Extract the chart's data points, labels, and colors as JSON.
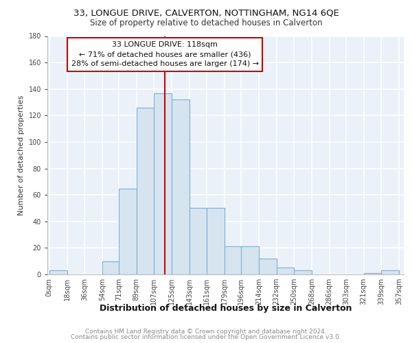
{
  "title_line1": "33, LONGUE DRIVE, CALVERTON, NOTTINGHAM, NG14 6QE",
  "title_line2": "Size of property relative to detached houses in Calverton",
  "xlabel": "Distribution of detached houses by size in Calverton",
  "ylabel": "Number of detached properties",
  "bar_color": "#d6e4f0",
  "bar_edge_color": "#7bafd4",
  "bar_left_edges": [
    0,
    18,
    36,
    54,
    71,
    89,
    107,
    125,
    143,
    161,
    179,
    196,
    214,
    232,
    250,
    268,
    286,
    303,
    321,
    339
  ],
  "bar_widths": [
    18,
    18,
    18,
    17,
    18,
    18,
    18,
    18,
    18,
    18,
    17,
    18,
    18,
    18,
    18,
    18,
    17,
    18,
    18,
    18
  ],
  "bar_heights": [
    3,
    0,
    0,
    10,
    65,
    126,
    137,
    132,
    50,
    50,
    21,
    21,
    12,
    5,
    3,
    0,
    0,
    0,
    1,
    3
  ],
  "x_tick_labels": [
    "0sqm",
    "18sqm",
    "36sqm",
    "54sqm",
    "71sqm",
    "89sqm",
    "107sqm",
    "125sqm",
    "143sqm",
    "161sqm",
    "179sqm",
    "196sqm",
    "214sqm",
    "232sqm",
    "250sqm",
    "268sqm",
    "286sqm",
    "303sqm",
    "321sqm",
    "339sqm",
    "357sqm"
  ],
  "x_tick_positions": [
    0,
    18,
    36,
    54,
    71,
    89,
    107,
    125,
    143,
    161,
    179,
    196,
    214,
    232,
    250,
    268,
    286,
    303,
    321,
    339,
    357
  ],
  "ylim": [
    0,
    180
  ],
  "yticks": [
    0,
    20,
    40,
    60,
    80,
    100,
    120,
    140,
    160,
    180
  ],
  "xlim_left": -2,
  "xlim_right": 362,
  "property_line_x": 118,
  "annotation_line1": "33 LONGUE DRIVE: 118sqm",
  "annotation_line2": "← 71% of detached houses are smaller (436)",
  "annotation_line3": "28% of semi-detached houses are larger (174) →",
  "annotation_box_color": "#ffffff",
  "annotation_box_edge_color": "#cc0000",
  "line_color": "#cc0000",
  "footer_line1": "Contains HM Land Registry data © Crown copyright and database right 2024.",
  "footer_line2": "Contains public sector information licensed under the Open Government Licence v3.0.",
  "background_color": "#eaf1f8",
  "grid_color": "#ffffff",
  "fig_background": "#ffffff",
  "title_fontsize": 9.5,
  "subtitle_fontsize": 8.5,
  "annotation_fontsize": 8,
  "ylabel_fontsize": 8,
  "tick_fontsize": 7,
  "xlabel_fontsize": 9,
  "footer_fontsize": 6.5
}
